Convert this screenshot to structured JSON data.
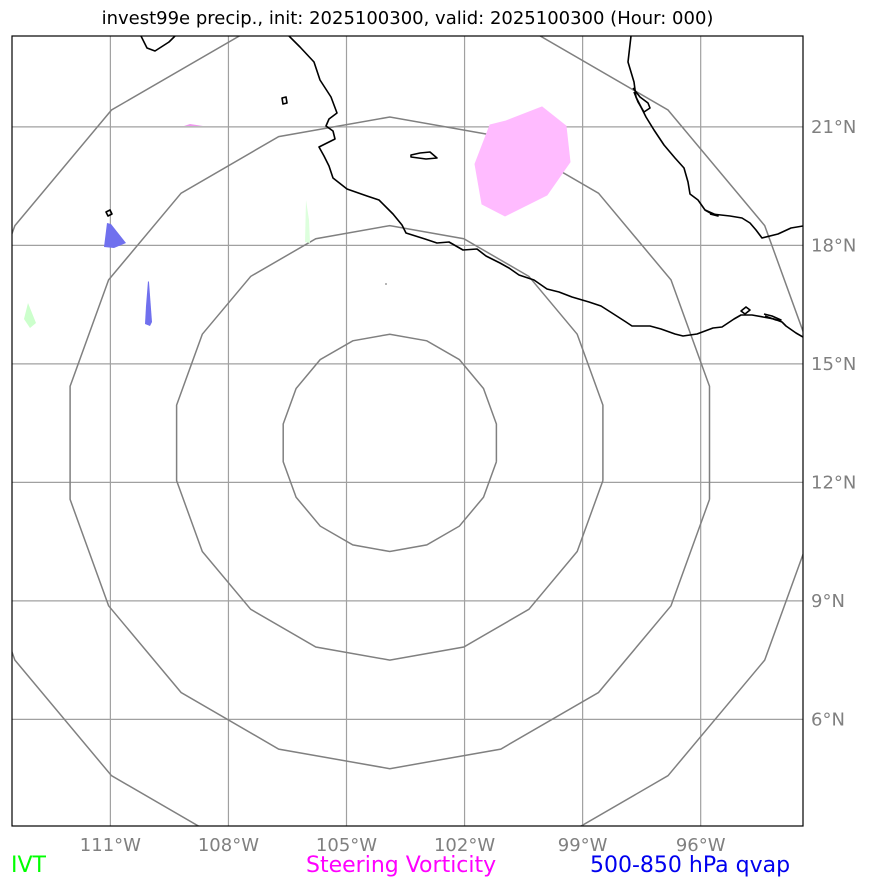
{
  "title": "invest99e precip., init: 2025100300, valid: 2025100300 (Hour: 000)",
  "axes": {
    "lon_labels": [
      "111°W",
      "108°W",
      "105°W",
      "102°W",
      "99°W",
      "96°W"
    ],
    "lat_labels": [
      "21°N",
      "18°N",
      "15°N",
      "12°N",
      "9°N",
      "6°N"
    ],
    "lon_ticks": [
      -111,
      -108,
      -105,
      -102,
      -99,
      -96
    ],
    "lat_ticks": [
      21,
      18,
      15,
      12,
      9,
      6
    ],
    "lon_range": [
      -113.5,
      -93.4
    ],
    "lat_range": [
      3.3,
      23.3
    ]
  },
  "range_rings": {
    "center_lat": 13.0,
    "center_lon": -103.9,
    "radii_deg": [
      2.75,
      5.5,
      8.25,
      11.0
    ]
  },
  "legend": {
    "ivt": "IVT",
    "steering_vorticity": "Steering Vorticity",
    "qvap": "500-850 hPa qvap"
  },
  "colors": {
    "ivt": "#00ff00",
    "steering_vorticity": "#ff00ff",
    "qvap": "#0000ee",
    "vorticity_fill": "#ffbbff",
    "qvap_fill": "#7070ee",
    "ivt_fill": "#ccffcc",
    "grid": "#a0a0a0",
    "rings": "#808080",
    "coast": "#000000"
  }
}
